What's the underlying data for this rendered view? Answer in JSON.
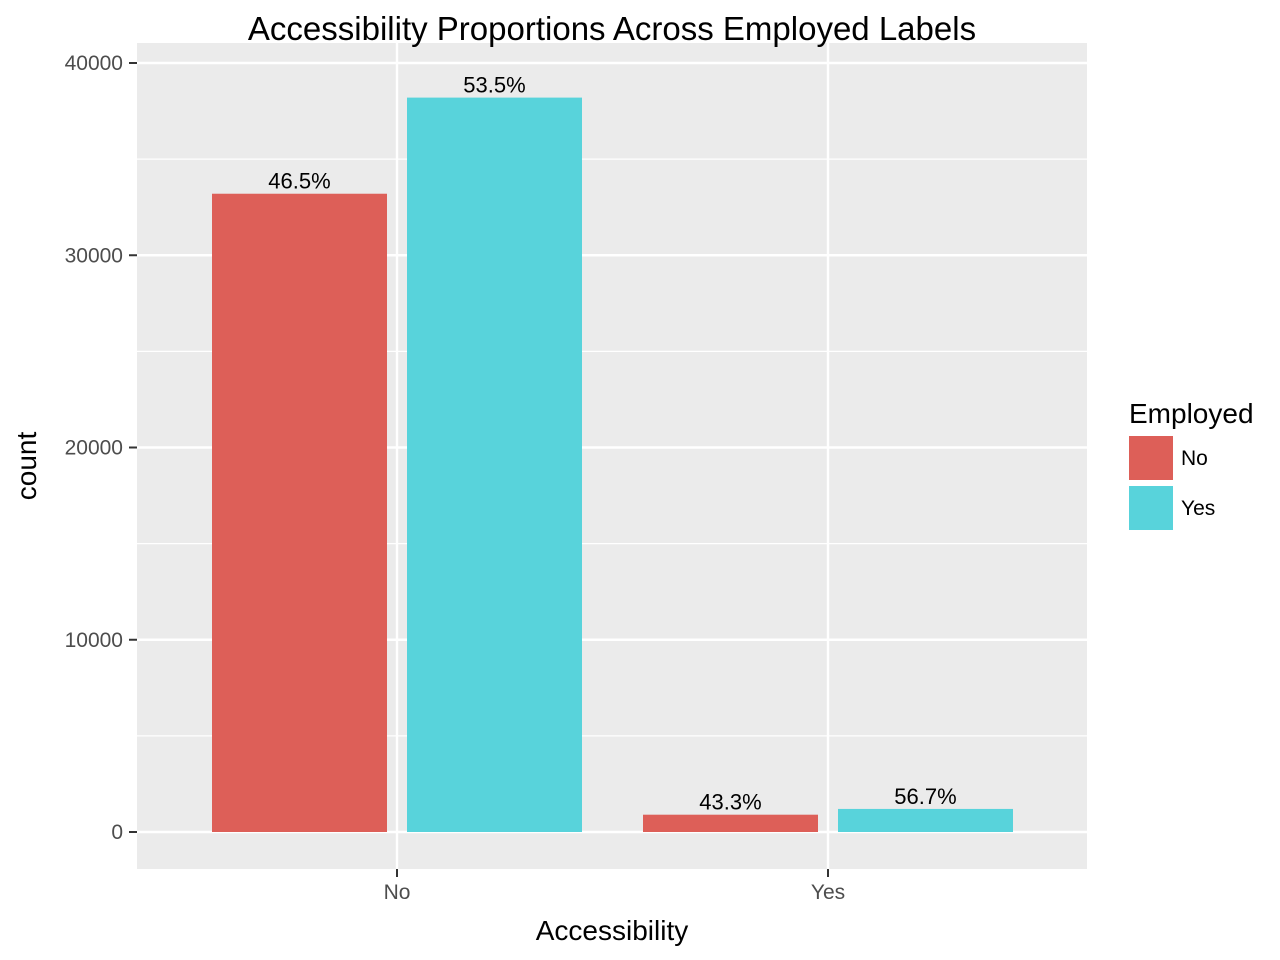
{
  "chart_data": {
    "type": "bar",
    "title": "Accessibility Proportions Across Employed Labels",
    "xlabel": "Accessibility",
    "ylabel": "count",
    "ylim": [
      -1900,
      40000
    ],
    "yticks": [
      0,
      10000,
      20000,
      30000,
      40000
    ],
    "categories": [
      "No",
      "Yes"
    ],
    "series": [
      {
        "name": "No",
        "color": "#dd5f58",
        "values": [
          33200,
          900
        ],
        "labels": [
          "46.5%",
          "43.3%"
        ]
      },
      {
        "name": "Yes",
        "color": "#58d3db",
        "values": [
          38200,
          1200
        ],
        "labels": [
          "53.5%",
          "56.7%"
        ]
      }
    ],
    "legend": {
      "title": "Employed",
      "position": "right",
      "entries": [
        "No",
        "Yes"
      ]
    },
    "panel_background": "#ebebeb",
    "grid": true
  }
}
